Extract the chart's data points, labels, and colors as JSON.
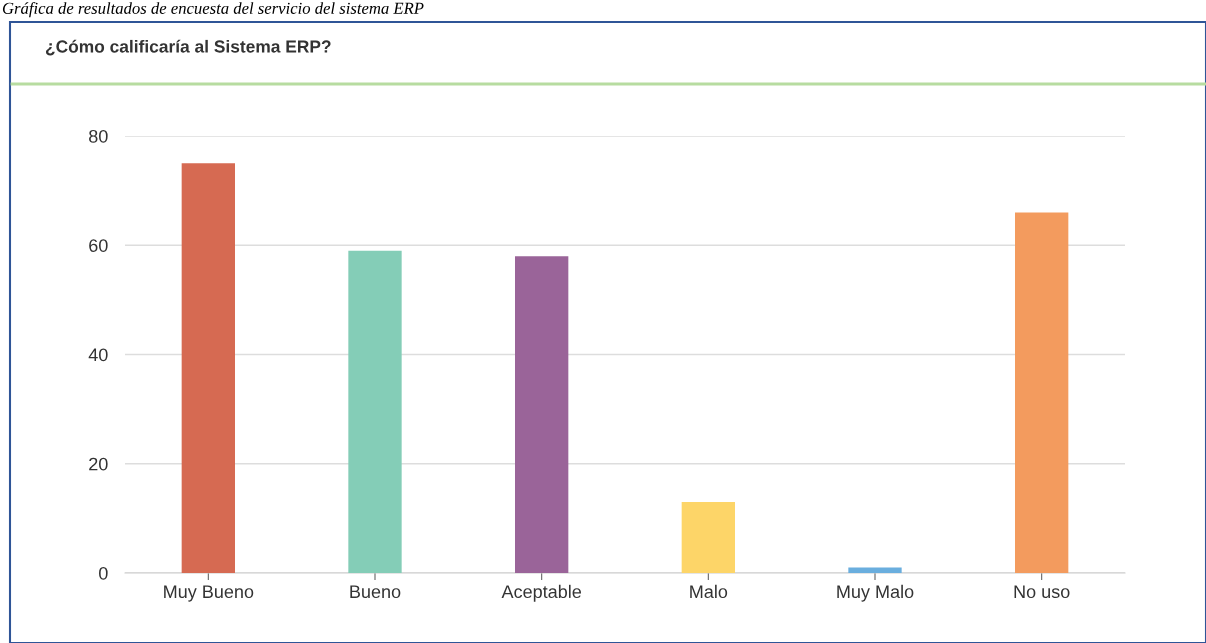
{
  "chart_data": {
    "type": "bar",
    "title": "¿Cómo calificaría al Sistema ERP?",
    "annotations": [
      "Gráfica de resultados de encuesta del servicio del sistema ERP"
    ],
    "categories": [
      "Muy Bueno",
      "Bueno",
      "Aceptable",
      "Malo",
      "Muy Malo",
      "No uso"
    ],
    "values": [
      75,
      59,
      58,
      13,
      1,
      66
    ],
    "colors": [
      "#d66a52",
      "#84cdb7",
      "#9a6499",
      "#fdd568",
      "#6aaede",
      "#f39b5e"
    ],
    "ylim": [
      0,
      80
    ],
    "yticks": [
      0,
      20,
      40,
      60,
      80
    ],
    "grid": "y",
    "legend": false
  }
}
